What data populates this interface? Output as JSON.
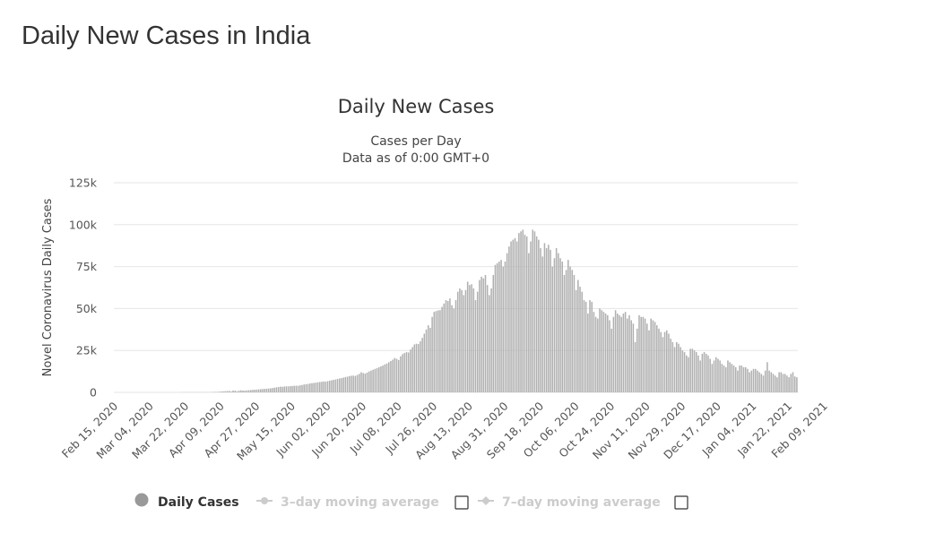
{
  "page": {
    "heading": "Daily New Cases in India"
  },
  "chart_data": {
    "type": "bar",
    "title": "Daily New Cases",
    "subtitle_lines": [
      "Cases per Day",
      "Data as of 0:00 GMT+0"
    ],
    "xlabel": "",
    "ylabel": "Novel Coronavirus Daily Cases",
    "ylim": [
      0,
      125000
    ],
    "y_ticks": [
      {
        "value": 0,
        "label": "0"
      },
      {
        "value": 25000,
        "label": "25k"
      },
      {
        "value": 50000,
        "label": "50k"
      },
      {
        "value": 75000,
        "label": "75k"
      },
      {
        "value": 100000,
        "label": "100k"
      },
      {
        "value": 125000,
        "label": "125k"
      }
    ],
    "x_tick_labels": [
      "Feb 15, 2020",
      "Mar 04, 2020",
      "Mar 22, 2020",
      "Apr 09, 2020",
      "Apr 27, 2020",
      "May 15, 2020",
      "Jun 02, 2020",
      "Jun 20, 2020",
      "Jul 08, 2020",
      "Jul 26, 2020",
      "Aug 13, 2020",
      "Aug 31, 2020",
      "Sep 18, 2020",
      "Oct 06, 2020",
      "Oct 24, 2020",
      "Nov 11, 2020",
      "Nov 29, 2020",
      "Dec 17, 2020",
      "Jan 04, 2021",
      "Jan 22, 2021",
      "Feb 09, 2021"
    ],
    "grid": true,
    "legend_position": "bottom",
    "series": [
      {
        "name": "Daily Cases",
        "color": "#b0b0b0",
        "values": [
          0,
          0,
          0,
          0,
          0,
          0,
          0,
          0,
          0,
          0,
          0,
          0,
          0,
          0,
          0,
          0,
          0,
          0,
          0,
          0,
          0,
          0,
          0,
          0,
          0,
          0,
          0,
          0,
          0,
          0,
          0,
          0,
          0,
          0,
          100,
          100,
          100,
          100,
          100,
          100,
          100,
          100,
          100,
          100,
          100,
          100,
          100,
          100,
          100,
          200,
          200,
          300,
          300,
          400,
          500,
          600,
          700,
          800,
          900,
          500,
          1100,
          1000,
          700,
          1000,
          1200,
          1100,
          1000,
          1200,
          1300,
          1400,
          1500,
          1600,
          1700,
          1800,
          1900,
          2000,
          2100,
          2200,
          2300,
          2400,
          2600,
          2800,
          3000,
          3200,
          3400,
          3300,
          3500,
          3600,
          3600,
          3700,
          3800,
          3900,
          4000,
          3900,
          4200,
          4400,
          4700,
          4900,
          5000,
          5300,
          5500,
          5600,
          5800,
          6000,
          6200,
          6300,
          6500,
          6400,
          6700,
          7000,
          7200,
          7500,
          7700,
          8000,
          8300,
          8500,
          8800,
          9100,
          9400,
          9700,
          9900,
          10000,
          9800,
          10400,
          11000,
          12000,
          11500,
          11200,
          11800,
          12500,
          13000,
          13500,
          14000,
          14500,
          15000,
          15500,
          16000,
          16700,
          17200,
          18000,
          18700,
          19500,
          20500,
          20000,
          19300,
          21500,
          22800,
          23500,
          24000,
          23800,
          25500,
          27000,
          28600,
          29000,
          28800,
          30500,
          32500,
          35000,
          37500,
          40000,
          38500,
          45000,
          48000,
          48500,
          48900,
          49000,
          51000,
          53000,
          55000,
          54500,
          56000,
          52000,
          50000,
          55000,
          60000,
          62000,
          61000,
          58000,
          61000,
          66000,
          64000,
          64500,
          62000,
          55000,
          60000,
          67000,
          69000,
          68000,
          70000,
          64000,
          58000,
          62000,
          70000,
          76000,
          77000,
          78000,
          79000,
          75000,
          78000,
          83000,
          87000,
          90000,
          91000,
          92000,
          90000,
          95000,
          96000,
          97000,
          94000,
          93000,
          83000,
          90000,
          97000,
          96000,
          93000,
          91000,
          86000,
          81000,
          89000,
          86000,
          88000,
          85000,
          75000,
          80000,
          86000,
          83000,
          80000,
          78000,
          70000,
          73000,
          79000,
          75000,
          73000,
          70000,
          61000,
          67000,
          63000,
          60000,
          55000,
          54000,
          47000,
          55000,
          54000,
          48000,
          45000,
          44000,
          50000,
          49000,
          48000,
          47000,
          46000,
          43000,
          38000,
          45000,
          49000,
          47000,
          46000,
          45000,
          47000,
          48000,
          44000,
          46000,
          43000,
          41000,
          30000,
          38000,
          46000,
          45000,
          45000,
          44000,
          41000,
          37000,
          44000,
          43000,
          42000,
          40000,
          38000,
          36000,
          33000,
          36000,
          37000,
          35000,
          32000,
          30000,
          27000,
          30000,
          29000,
          27000,
          25000,
          24000,
          22000,
          21000,
          26000,
          26000,
          25000,
          24000,
          22000,
          19000,
          23000,
          24000,
          23000,
          22000,
          20000,
          17000,
          19000,
          21000,
          20000,
          19000,
          17000,
          16000,
          15000,
          19000,
          18000,
          17000,
          16000,
          15000,
          13000,
          16000,
          16000,
          15000,
          15000,
          14000,
          12000,
          13000,
          14000,
          14000,
          13000,
          12000,
          11000,
          10000,
          13000,
          18000,
          13000,
          12000,
          11000,
          10000,
          9000,
          12000,
          12000,
          11000,
          11000,
          10000,
          9000,
          11000,
          12000,
          9500,
          9000
        ]
      },
      {
        "name": "3-day moving average",
        "legend_label": "3–day moving average",
        "visible": false,
        "color": "#cccccc"
      },
      {
        "name": "7-day moving average",
        "legend_label": "7–day moving average",
        "visible": false,
        "color": "#cccccc"
      }
    ]
  },
  "colors": {
    "bar": "#b0b0b0",
    "legend_active_marker": "#999999",
    "legend_active_text": "#333333",
    "legend_inactive": "#cccccc"
  }
}
